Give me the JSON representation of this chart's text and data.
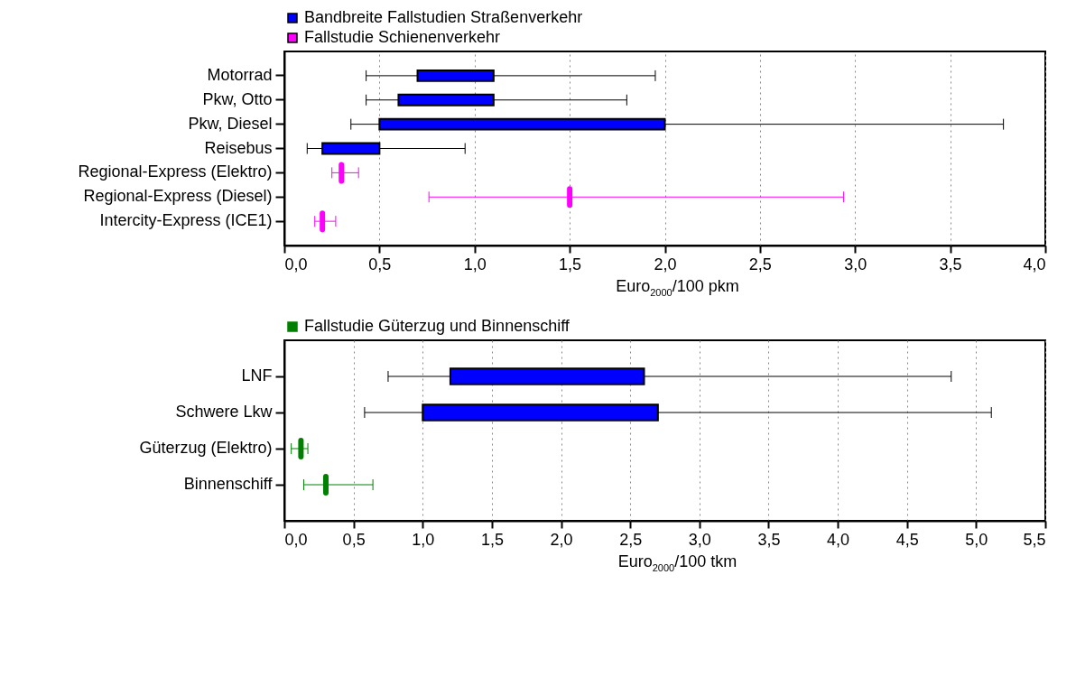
{
  "chart_data": [
    {
      "type": "bar",
      "orientation": "horizontal",
      "xlabel": "Euro$_{2000}$/100 pkm",
      "grid": "x",
      "legend": "top",
      "categories": [
        "Motorrad",
        "Pkw, Otto",
        "Pkw, Diesel",
        "Reisebus",
        "Regional-Express (Elektro)",
        "Regional-Express (Diesel)",
        "Intercity-Express (ICE1)"
      ],
      "xlim": [
        0,
        4
      ],
      "xticks": [
        {
          "value": 0,
          "label": "0,0"
        },
        {
          "value": 0.5,
          "label": "0,5"
        },
        {
          "value": 1,
          "label": "1,0"
        },
        {
          "value": 1.5,
          "label": "1,5"
        },
        {
          "value": 2,
          "label": "2,0"
        },
        {
          "value": 2.5,
          "label": "2,5"
        },
        {
          "value": 3,
          "label": "3,0"
        },
        {
          "value": 3.5,
          "label": "3,5"
        },
        {
          "value": 4,
          "label": "4,0"
        }
      ],
      "series": [
        {
          "name": "Bandbreite Fallstudien Straßenverkehr",
          "color": "#0000ff",
          "base": [
            0.7,
            0.6,
            0.5,
            0.2,
            null,
            null,
            null
          ],
          "values": [
            0.4,
            0.5,
            1.5,
            0.3,
            null,
            null,
            null
          ],
          "errors": [
            [
              0.43,
              1.95
            ],
            [
              0.43,
              1.8
            ],
            [
              0.35,
              3.78
            ],
            [
              0.12,
              0.95
            ],
            null,
            null,
            null
          ]
        },
        {
          "name": "Fallstudie Schienenverkehr",
          "color": "#ff00ff",
          "base": [
            null,
            null,
            null,
            null,
            0.3,
            1.5,
            0.2
          ],
          "values": [
            null,
            null,
            null,
            null,
            0,
            0,
            0
          ],
          "errors": [
            null,
            null,
            null,
            null,
            [
              0.25,
              0.39
            ],
            [
              0.76,
              2.94
            ],
            [
              0.16,
              0.27
            ]
          ]
        }
      ]
    },
    {
      "type": "bar",
      "orientation": "horizontal",
      "xlabel": "Euro$_{2000}$/100 tkm",
      "grid": "x",
      "legend": "top",
      "categories": [
        "LNF",
        "Schwere Lkw",
        "Güterzug (Elektro)",
        "Binnenschiff"
      ],
      "xlim": [
        0,
        5.5
      ],
      "xticks": [
        {
          "value": 0,
          "label": "0,0"
        },
        {
          "value": 0.5,
          "label": "0,5"
        },
        {
          "value": 1,
          "label": "1,0"
        },
        {
          "value": 1.5,
          "label": "1,5"
        },
        {
          "value": 2,
          "label": "2,0"
        },
        {
          "value": 2.5,
          "label": "2,5"
        },
        {
          "value": 3,
          "label": "3,0"
        },
        {
          "value": 3.5,
          "label": "3,5"
        },
        {
          "value": 4,
          "label": "4,0"
        },
        {
          "value": 4.5,
          "label": "4,5"
        },
        {
          "value": 5,
          "label": "5,0"
        },
        {
          "value": 5.5,
          "label": "5,5"
        }
      ],
      "series": [
        {
          "color": "#0000ff",
          "base": [
            1.2,
            1.0,
            null,
            null
          ],
          "values": [
            1.4,
            1.7,
            null,
            null
          ],
          "errors": [
            [
              0.75,
              4.82
            ],
            [
              0.58,
              5.11
            ],
            null,
            null
          ]
        },
        {
          "name": "Fallstudie Güterzug und Binnenschiff",
          "color": "#008000",
          "base": [
            null,
            null,
            0.12,
            0.3
          ],
          "values": [
            null,
            null,
            0,
            0
          ],
          "errors": [
            null,
            null,
            [
              0.05,
              0.17
            ],
            [
              0.14,
              0.64
            ]
          ]
        }
      ]
    }
  ]
}
